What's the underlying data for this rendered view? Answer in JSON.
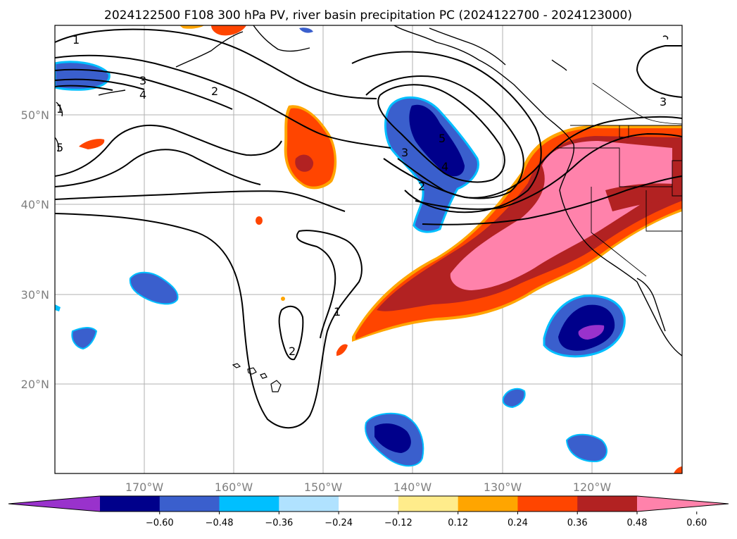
{
  "title": "2024122500 F108 300 hPa PV, river basin precipitation PC (2024122700 - 2024123000)",
  "map": {
    "lon_labels": [
      "170°W",
      "160°W",
      "150°W",
      "140°W",
      "130°W",
      "120°W"
    ],
    "lat_labels": [
      "50°N",
      "40°N",
      "30°N",
      "20°N"
    ],
    "contour_labels": [
      "1",
      "2",
      "3",
      "4",
      "5",
      "1",
      "2",
      "3",
      "4",
      "5",
      "2",
      "1",
      "3"
    ]
  },
  "colorbar": {
    "ticks": [
      "-0.60",
      "-0.48",
      "-0.36",
      "-0.24",
      "-0.12",
      "0.12",
      "0.24",
      "0.36",
      "0.48",
      "0.60"
    ],
    "colors": [
      "#9932cc",
      "#00008b",
      "#3a5fcd",
      "#00bfff",
      "#b0e2ff",
      "#ffffff",
      "#ffec8b",
      "#ffa500",
      "#ff4500",
      "#b22222",
      "#ff82ab"
    ]
  }
}
